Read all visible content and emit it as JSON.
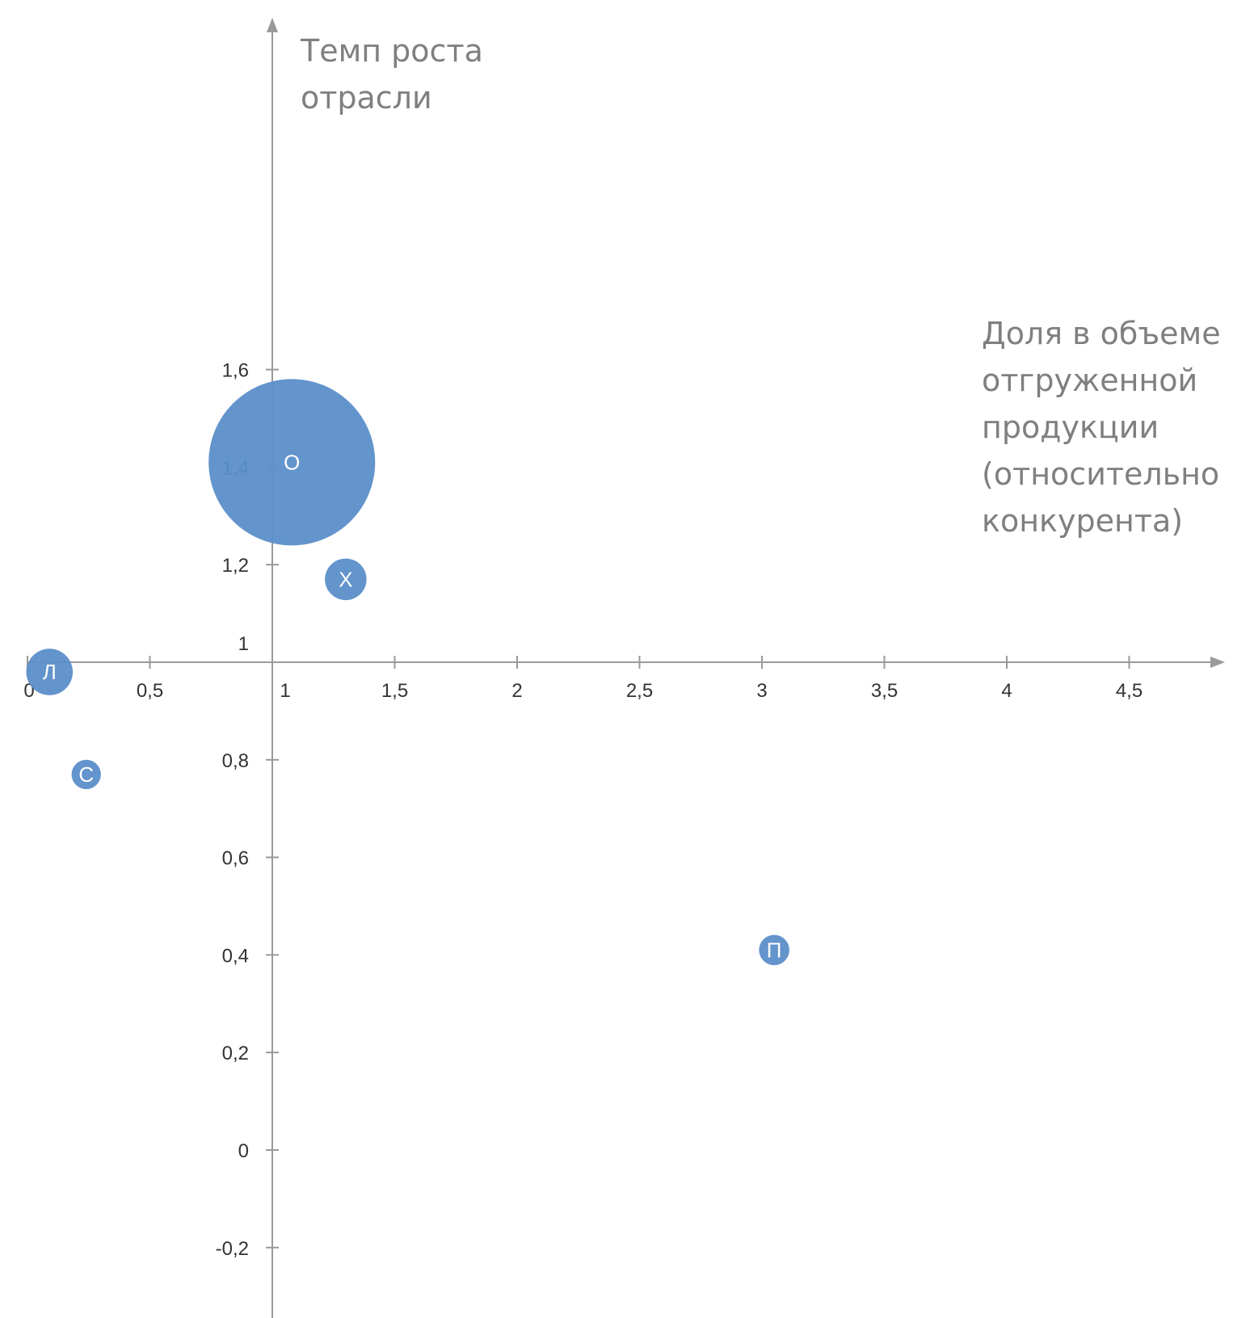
{
  "chart_data": {
    "type": "bubble",
    "x_title_lines": [
      "Доля в объеме",
      "отгруженной",
      "продукции",
      "(относительно",
      "конкурента)"
    ],
    "y_title_lines": [
      "Темп роста",
      "отрасли"
    ],
    "x_ticks": [
      0,
      0.5,
      1,
      1.5,
      2,
      2.5,
      3,
      3.5,
      4,
      4.5
    ],
    "x_tick_labels": [
      "0",
      "0,5",
      "1",
      "1,5",
      "2",
      "2,5",
      "3",
      "3,5",
      "4",
      "4,5"
    ],
    "y_ticks": [
      -0.2,
      0,
      0.2,
      0.4,
      0.6,
      0.8,
      1,
      1.2,
      1.4,
      1.6
    ],
    "y_tick_labels": [
      "-0,2",
      "0",
      "0,2",
      "0,4",
      "0,6",
      "0,8",
      "1",
      "1,2",
      "1,4",
      "1,6"
    ],
    "xlim": [
      0,
      4.8
    ],
    "ylim": [
      -0.25,
      1.85
    ],
    "x_axis_crosses_y_at": 1,
    "y_axis_crosses_x_at": 1,
    "grid": false,
    "bubble_color": "#5b8ec9",
    "bubbles": [
      {
        "label": "О",
        "x": 1.08,
        "y": 1.41,
        "size": 0.34
      },
      {
        "label": "Х",
        "x": 1.3,
        "y": 1.17,
        "size": 0.085
      },
      {
        "label": "Л",
        "x": 0.09,
        "y": 0.98,
        "size": 0.095
      },
      {
        "label": "С",
        "x": 0.24,
        "y": 0.77,
        "size": 0.06
      },
      {
        "label": "П",
        "x": 3.05,
        "y": 0.41,
        "size": 0.062
      }
    ]
  }
}
